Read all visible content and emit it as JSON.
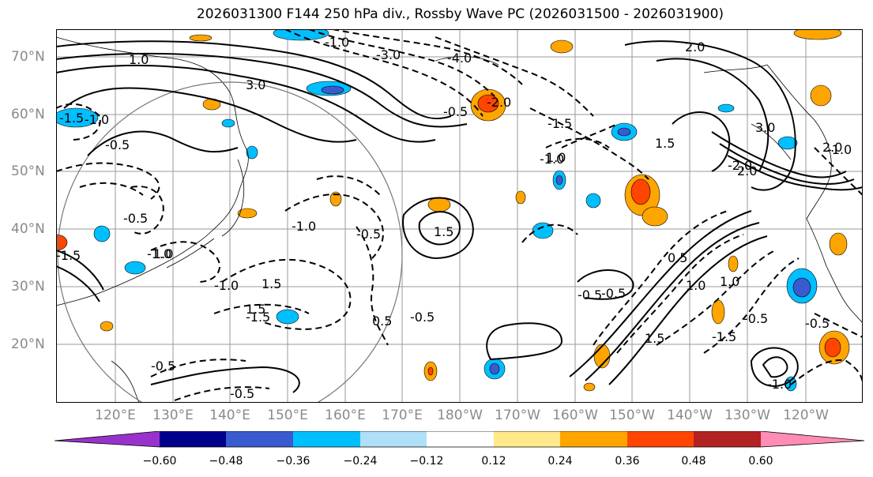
{
  "title": "2026031300 F144 250 hPa div., Rossby Wave PC (2026031500 - 2026031900)",
  "lat_labels": [
    "70°N",
    "60°N",
    "50°N",
    "40°N",
    "30°N",
    "20°N"
  ],
  "lon_labels": [
    "120°E",
    "130°E",
    "140°E",
    "150°E",
    "160°E",
    "170°E",
    "180°W",
    "170°W",
    "160°W",
    "150°W",
    "140°W",
    "130°W",
    "120°W"
  ],
  "colorbar": {
    "ticks": [
      "−0.60",
      "−0.48",
      "−0.36",
      "−0.24",
      "−0.12",
      "0.12",
      "0.24",
      "0.36",
      "0.48",
      "0.60"
    ],
    "colors": [
      "#9932cc",
      "#00008b",
      "#3a5bcf",
      "#00bfff",
      "#b0e0f8",
      "#ffffff",
      "#ffe98a",
      "#ffa500",
      "#ff4500",
      "#b22222",
      "#ff8cb4"
    ]
  },
  "contour_labels": {
    "pos": [
      "1.0",
      "3.0",
      "2.0",
      "1.5",
      "1.5",
      "0.5",
      "1.0",
      "3.0",
      "2.0",
      "1.5",
      "0.5",
      "1.0",
      "1.0",
      "1.5",
      "1.0",
      "2.0",
      "1.5"
    ],
    "neg": [
      "-1.5",
      "-0.5",
      "-1.0",
      "-0.5",
      "-1.0",
      "-1.0",
      "-1.5",
      "-0.5",
      "-0.5",
      "-3.0",
      "-4.0",
      "-2.0",
      "-0.5",
      "-1.0",
      "-1.5",
      "-0.5",
      "-0.5",
      "-0.5",
      "-1.5",
      "-1.0",
      "-2.0",
      "-0.5",
      "-1.0",
      "-0.5",
      "-0.5",
      "-1.0",
      "-1.5",
      "-1.0"
    ]
  }
}
